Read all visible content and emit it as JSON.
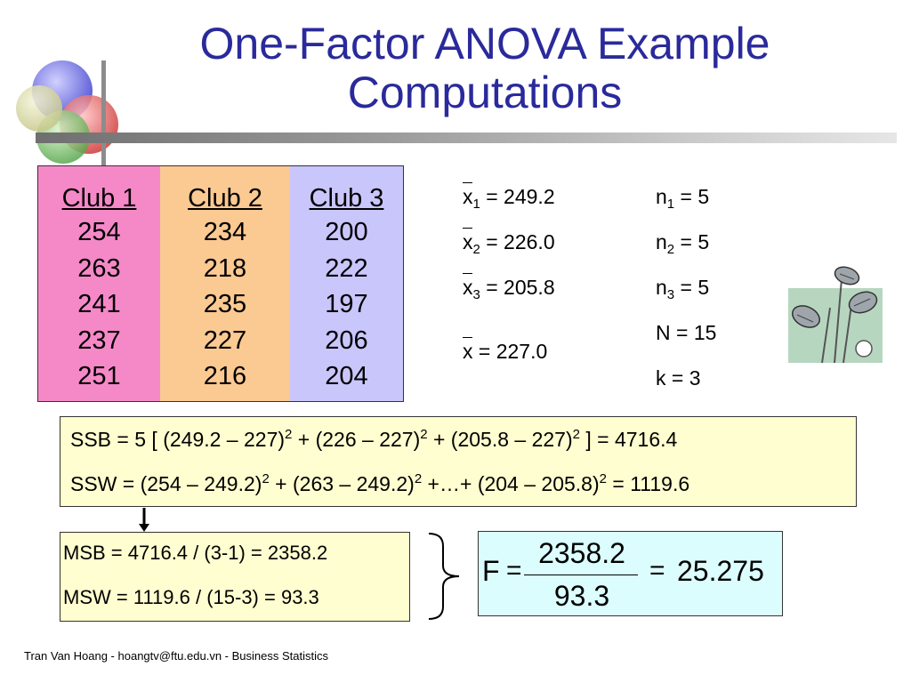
{
  "title": {
    "line1": "One-Factor ANOVA Example",
    "line2": "Computations"
  },
  "table": {
    "columns": [
      {
        "header": "Club 1",
        "values": [
          "254",
          "263",
          "241",
          "237",
          "251"
        ],
        "color": "#f589c8"
      },
      {
        "header": "Club 2",
        "values": [
          "234",
          "218",
          "235",
          "227",
          "216"
        ],
        "color": "#fbc992"
      },
      {
        "header": "Club 3",
        "values": [
          "200",
          "222",
          "197",
          "206",
          "204"
        ],
        "color": "#c9c6fb"
      }
    ]
  },
  "means": {
    "x1": {
      "sym": "x",
      "sub": "1",
      "rest": " = 249.2"
    },
    "x2": {
      "sym": "x",
      "sub": "2",
      "rest": " = 226.0"
    },
    "x3": {
      "sym": "x",
      "sub": "3",
      "rest": " = 205.8"
    },
    "grand": {
      "sym": "x",
      "rest": " = 227.0"
    }
  },
  "counts": {
    "n1": {
      "sym": "n",
      "sub": "1",
      "rest": " = 5"
    },
    "n2": {
      "sym": "n",
      "sub": "2",
      "rest": " = 5"
    },
    "n3": {
      "sym": "n",
      "sub": "3",
      "rest": " = 5"
    },
    "N": "N = 15",
    "k": "k = 3"
  },
  "ss": {
    "ssb": {
      "p1": "SSB =  5 [ (249.2 – 227)",
      "p2": " + (226 – 227)",
      "p3": " + (205.8 – 227)",
      "p4": " ] = 4716.4",
      "exp": "2"
    },
    "ssw": {
      "p1": "SSW =  (254 – 249.2)",
      "p2": " + (263 – 249.2)",
      "p3": " +…+ (204 – 205.8)",
      "p4": " = 1119.6",
      "exp": "2"
    }
  },
  "ms": {
    "msb": "MSB = 4716.4 / (3-1) = 2358.2",
    "msw": "MSW = 1119.6 / (15-3) = 93.3"
  },
  "f": {
    "label": "F",
    "eq": "=",
    "numerator": "2358.2",
    "denominator": "93.3",
    "result": "25.275"
  },
  "footer": "Tran Van Hoang - hoangtv@ftu.edu.vn - Business Statistics",
  "colors": {
    "title": "#2a2a9c",
    "ss_box": "#fffed0",
    "f_box": "#dcfdfe"
  }
}
